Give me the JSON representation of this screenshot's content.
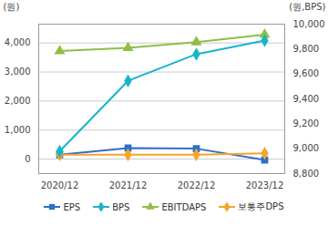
{
  "chart_data": {
    "type": "line",
    "x": [
      "2020/12",
      "2021/12",
      "2022/12",
      "2023/12"
    ],
    "series": [
      {
        "name": "EPS",
        "color": "#2f6fc8",
        "marker": "square",
        "values": [
          150,
          380,
          360,
          -30
        ]
      },
      {
        "name": "BPS",
        "color": "#18b4c8",
        "marker": "diamond",
        "axis": "y2",
        "values": [
          8979,
          9545,
          9759,
          9869
        ]
      },
      {
        "name": "EBITDAPS",
        "color": "#8ebf48",
        "marker": "triangle",
        "values": [
          3720,
          3830,
          4030,
          4290
        ]
      },
      {
        "name": "보통주DPS",
        "color": "#f4a52a",
        "marker": "diamond",
        "values": [
          150,
          150,
          150,
          200
        ]
      }
    ],
    "ylabel": "(원)",
    "y2label": "(원,BPS)",
    "ylim": [
      -500,
      4650
    ],
    "yticks": [
      0,
      {
        "value": 1000,
        "label": "1,000"
      },
      {
        "value": 2000,
        "label": "2,000"
      },
      {
        "value": 3000,
        "label": "3,000"
      },
      {
        "value": 4000,
        "label": "4,000"
      }
    ],
    "y2lim": [
      8800,
      10000
    ],
    "y2ticks": [
      {
        "value": 8800,
        "label": "8,800"
      },
      {
        "value": 9000,
        "label": "9,000"
      },
      {
        "value": 9200,
        "label": "9,200"
      },
      {
        "value": 9400,
        "label": "9,400"
      },
      {
        "value": 9600,
        "label": "9,600"
      },
      {
        "value": 9800,
        "label": "9,800"
      },
      {
        "value": 10000,
        "label": "10,000"
      }
    ],
    "grid": true,
    "legend": "bottom"
  }
}
